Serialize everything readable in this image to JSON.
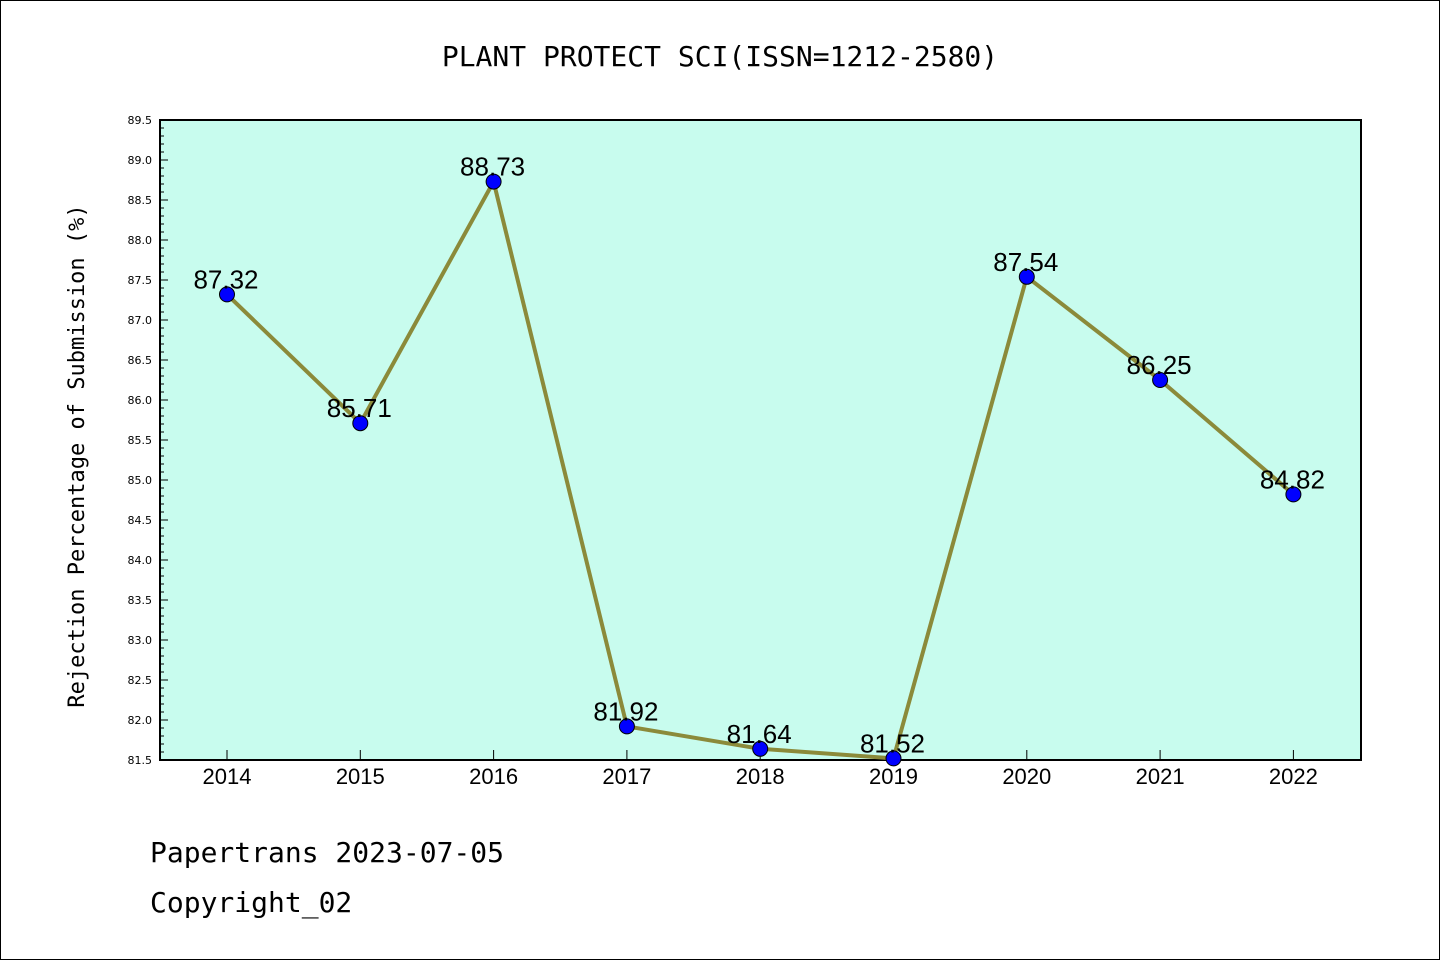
{
  "chart_data": {
    "type": "line",
    "title": "PLANT PROTECT SCI(ISSN=1212-2580)",
    "xlabel": "",
    "ylabel": "Rejection Percentage of Submission (%)",
    "categories": [
      "2014",
      "2015",
      "2016",
      "2017",
      "2018",
      "2019",
      "2020",
      "2021",
      "2022"
    ],
    "series": [
      {
        "values": [
          87.32,
          85.71,
          88.73,
          81.92,
          81.64,
          81.52,
          87.54,
          86.25,
          84.82
        ]
      }
    ],
    "data_labels": [
      "87.32",
      "85.71",
      "88.73",
      "81.92",
      "81.64",
      "81.52",
      "87.54",
      "86.25",
      "84.82"
    ],
    "ylim": [
      81.5,
      89.5
    ],
    "yticks": [
      "81.5",
      "82.0",
      "82.5",
      "83.0",
      "83.5",
      "84.0",
      "84.5",
      "85.0",
      "85.5",
      "86.0",
      "86.5",
      "87.0",
      "87.5",
      "88.0",
      "88.5",
      "89.0",
      "89.5"
    ],
    "grid": false,
    "colors": {
      "plot_background": "#c8fcee",
      "line": "#8b8a3a",
      "marker": "#0000ff"
    }
  },
  "footer": {
    "line1": "Papertrans 2023-07-05",
    "line2": "Copyright_02"
  }
}
